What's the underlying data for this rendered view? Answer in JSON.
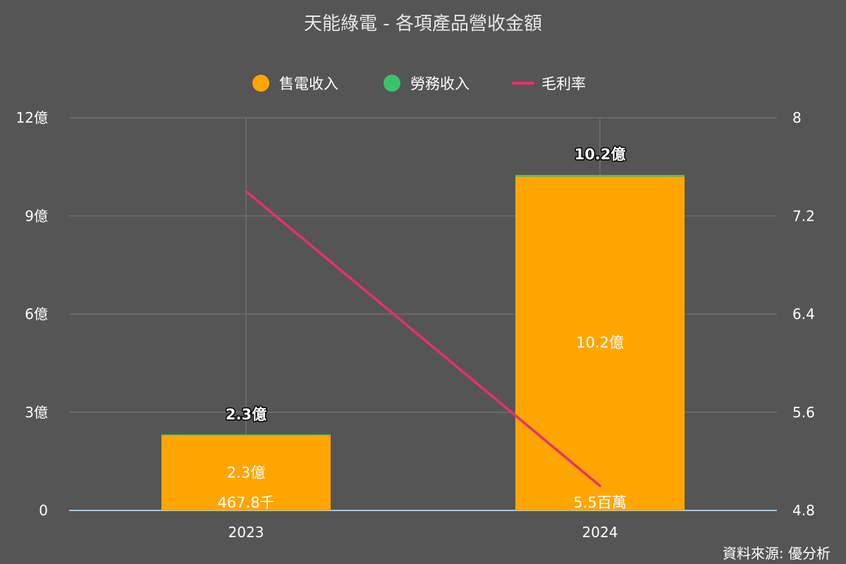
{
  "chart_data": {
    "type": "bar",
    "title": "天能綠電 - 各項產品營收金額",
    "categories": [
      "2023",
      "2024"
    ],
    "legend_position": "top-center",
    "grid": true,
    "series": [
      {
        "name": "售電收入",
        "kind": "bar",
        "color": "#FFA500",
        "axis": "left",
        "values": [
          2.3,
          10.2
        ],
        "value_labels": [
          "2.3億",
          "10.2億"
        ]
      },
      {
        "name": "勞務收入",
        "kind": "bar",
        "color": "#3CC26B",
        "axis": "left",
        "values": [
          0.004678,
          0.055
        ],
        "value_labels": [
          "467.8千",
          "5.5百萬"
        ]
      },
      {
        "name": "毛利率",
        "kind": "line",
        "color": "#E8306A",
        "axis": "right",
        "values": [
          7.4,
          5.0
        ]
      }
    ],
    "totals_labels": [
      "2.3億",
      "10.2億"
    ],
    "y_left": {
      "ylim": [
        0,
        12
      ],
      "ticks": [
        "0",
        "3億",
        "6億",
        "9億",
        "12億"
      ],
      "tick_values": [
        0,
        3,
        6,
        9,
        12
      ]
    },
    "y_right": {
      "ylim": [
        4.8,
        8
      ],
      "ticks": [
        "4.8",
        "5.6",
        "6.4",
        "7.2",
        "8"
      ],
      "tick_values": [
        4.8,
        5.6,
        6.4,
        7.2,
        8
      ]
    }
  },
  "source": "資料來源: 優分析",
  "colors": {
    "background": "#555555",
    "grid": "#6E6E6E",
    "text": "#FFFFFF",
    "baseline": "#A9C8D8"
  }
}
